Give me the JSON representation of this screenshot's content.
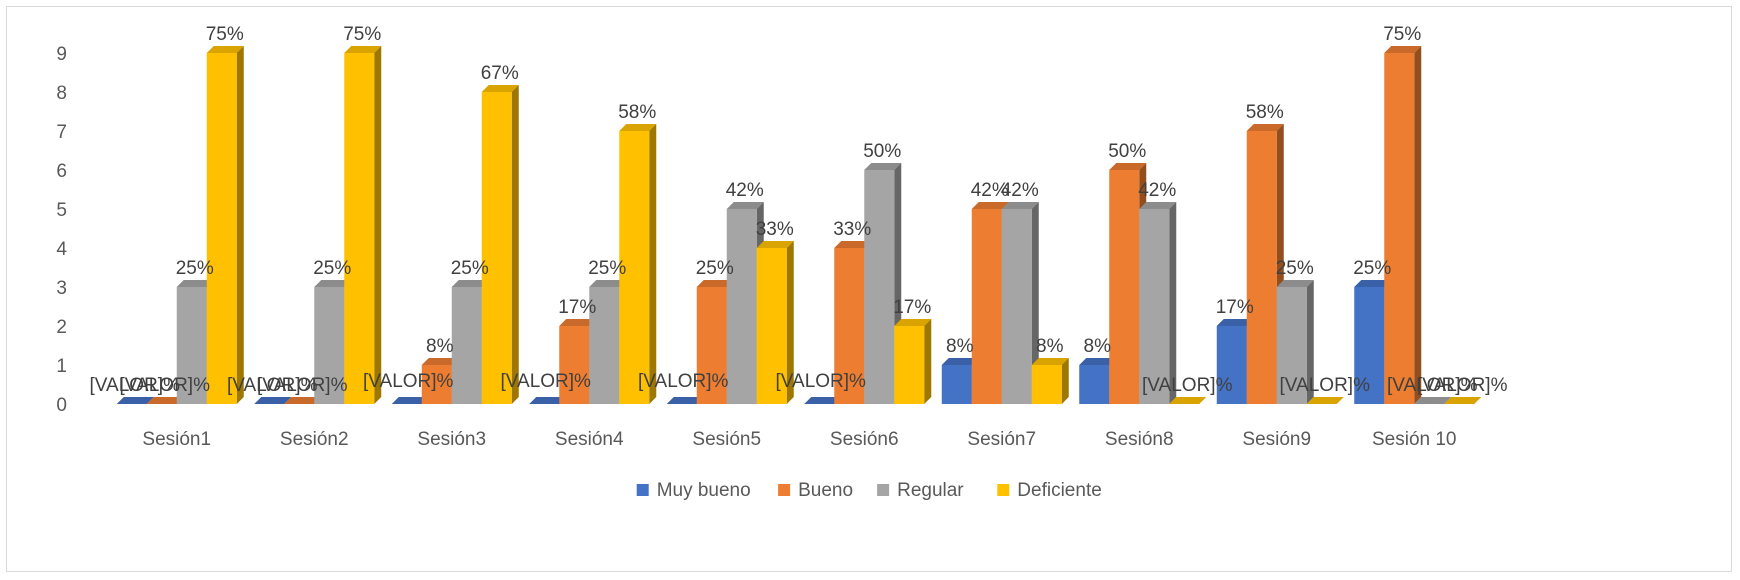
{
  "chart_data": {
    "type": "bar",
    "style": "3d-clustered-column",
    "categories": [
      "Sesión1",
      "Sesión2",
      "Sesión3",
      "Sesión4",
      "Sesión5",
      "Sesión6",
      "Sesión7",
      "Sesión8",
      "Sesión9",
      "Sesión 10"
    ],
    "series": [
      {
        "name": "Muy bueno",
        "color": "#4472C4",
        "values": [
          0,
          0,
          0,
          0,
          0,
          0,
          1,
          1,
          2,
          3
        ],
        "labels": [
          "[VALOR]%",
          "[VALOR]%",
          "",
          "",
          "",
          "",
          "8%",
          "8%",
          "17%",
          "25%"
        ]
      },
      {
        "name": "Bueno",
        "color": "#ED7D31",
        "values": [
          0,
          0,
          1,
          2,
          3,
          4,
          5,
          6,
          7,
          9
        ],
        "labels": [
          "[VALOR]%",
          "[VALOR]%",
          "8%",
          "17%",
          "25%",
          "33%",
          "42%",
          "50%",
          "58%",
          "75%"
        ]
      },
      {
        "name": "Regular",
        "color": "#A5A5A5",
        "values": [
          3,
          3,
          3,
          3,
          5,
          6,
          5,
          5,
          3,
          0
        ],
        "labels": [
          "25%",
          "25%",
          "25%",
          "25%",
          "42%",
          "50%",
          "42%",
          "42%",
          "25%",
          "[VALOR]%"
        ]
      },
      {
        "name": "Deficiente",
        "color": "#FFC000",
        "values": [
          9,
          9,
          8,
          7,
          4,
          2,
          1,
          0,
          0,
          0
        ],
        "labels": [
          "75%",
          "75%",
          "67%",
          "58%",
          "33%",
          "17%",
          "8%",
          "[VALOR]%",
          "[VALOR]%",
          "[VALOR]%"
        ]
      }
    ],
    "extra_labels": [
      {
        "category_index": 2,
        "text": "[VALOR]%"
      },
      {
        "category_index": 3,
        "text": "[VALOR]%"
      },
      {
        "category_index": 4,
        "text": "[VALOR]%"
      },
      {
        "category_index": 5,
        "text": "[VALOR]%"
      }
    ],
    "yticks": [
      "0",
      "1",
      "2",
      "3",
      "4",
      "5",
      "6",
      "7",
      "8",
      "9"
    ],
    "ylim": [
      0,
      9
    ],
    "grid": false,
    "legend": "bottom",
    "title": "",
    "xlabel": "",
    "ylabel": ""
  }
}
